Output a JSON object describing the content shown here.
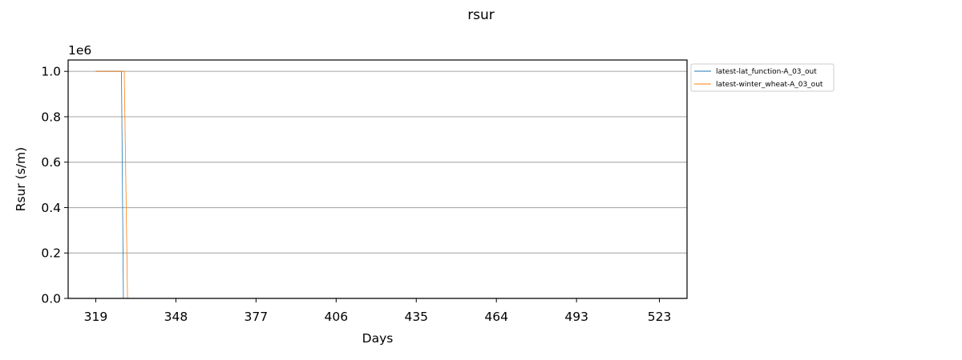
{
  "chart_data": {
    "type": "line",
    "title": "rsur",
    "xlabel": "Days",
    "ylabel": "Rsur (s/m)",
    "y_offset_label": "1e6",
    "xlim": [
      309,
      533
    ],
    "ylim": [
      0,
      1050000
    ],
    "x_ticks": [
      319,
      348,
      377,
      406,
      435,
      464,
      493,
      523
    ],
    "y_ticks": [
      0,
      200000,
      400000,
      600000,
      800000,
      1000000
    ],
    "y_tick_labels": [
      "0.0",
      "0.2",
      "0.4",
      "0.6",
      "0.8",
      "1.0"
    ],
    "grid": "horizontal",
    "legend_position": "outside-upper-right",
    "series": [
      {
        "name": "latest-lat_function-A_03_out",
        "color": "#1f77b4",
        "points": [
          [
            319,
            1000000
          ],
          [
            328,
            1000000
          ],
          [
            328.3,
            1000000
          ],
          [
            329.0,
            0
          ],
          [
            533,
            0
          ]
        ]
      },
      {
        "name": "latest-winter_wheat-A_03_out",
        "color": "#ff7f0e",
        "points": [
          [
            319,
            1000000
          ],
          [
            329,
            1000000
          ],
          [
            329.3,
            1000000
          ],
          [
            330.5,
            0
          ],
          [
            533,
            0
          ]
        ]
      }
    ]
  }
}
